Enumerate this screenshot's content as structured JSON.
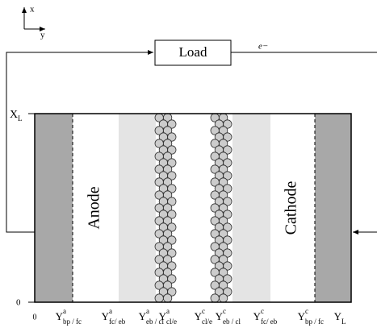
{
  "axes": {
    "x": "x",
    "y": "y"
  },
  "load": "Load",
  "electron": "e−",
  "left_axis": {
    "top": "X",
    "top_sub": "L",
    "bottom": "0"
  },
  "regions": {
    "anode": "Anode",
    "cathode": "Cathode"
  },
  "boundaries": [
    {
      "base": "0"
    },
    {
      "base": "Y",
      "sup": "a",
      "sub": "bp / fc"
    },
    {
      "base": "Y",
      "sup": "a",
      "sub": "fc/ eb"
    },
    {
      "base": "Y",
      "sup": "a",
      "sub": "eb / cl"
    },
    {
      "base": "Y",
      "sup": "a",
      "sub": "cl/e"
    },
    {
      "base": "Y",
      "sup": "c",
      "sub": "cl/e"
    },
    {
      "base": "Y",
      "sup": "c",
      "sub": "eb / cl"
    },
    {
      "base": "Y",
      "sup": "c",
      "sub": "fc/ eb"
    },
    {
      "base": "Y",
      "sup": "c",
      "sub": "bp / fc"
    },
    {
      "base": "Y",
      "sub": "L"
    }
  ]
}
